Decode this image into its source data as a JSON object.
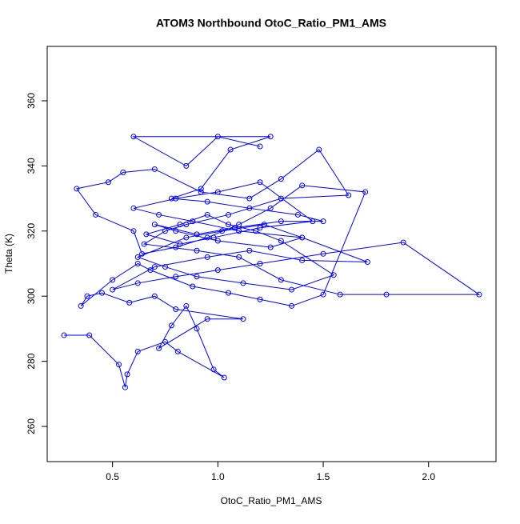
{
  "chart_data": {
    "type": "scatter",
    "connect": true,
    "title": "ATOM3 Northbound OtoC_Ratio_PM1_AMS",
    "xlabel": "OtoC_Ratio_PM1_AMS",
    "ylabel": "Theta (K)",
    "color": "#0000ff",
    "xlim": [
      0.19,
      2.32
    ],
    "ylim": [
      249.2,
      376.7
    ],
    "xticks": [
      0.5,
      {
        "value": 1,
        "label": "1.0"
      },
      1.5,
      {
        "value": 2,
        "label": "2.0"
      }
    ],
    "yticks": [
      260,
      280,
      300,
      320,
      340,
      360
    ],
    "x": [
      0.27,
      0.39,
      0.53,
      0.56,
      0.57,
      0.62,
      0.75,
      0.81,
      1.03,
      0.98,
      0.9,
      0.85,
      0.78,
      0.72,
      0.95,
      1.12,
      0.8,
      0.7,
      0.58,
      0.45,
      0.38,
      0.35,
      0.5,
      0.62,
      0.68,
      0.88,
      1.05,
      1.2,
      1.35,
      1.5,
      1.7,
      1.4,
      1.25,
      1.1,
      0.95,
      0.8,
      0.64,
      0.6,
      0.42,
      0.33,
      0.48,
      0.55,
      0.7,
      0.92,
      1.15,
      1.3,
      1.48,
      1.62,
      1.3,
      1.05,
      0.85,
      0.75,
      0.65,
      0.9,
      1.1,
      1.3,
      1.58,
      1.8,
      2.24,
      1.88,
      1.5,
      1.2,
      1.0,
      0.8,
      0.62,
      0.5,
      0.7,
      0.95,
      1.15,
      1.4,
      1.71,
      1.4,
      1.1,
      0.88,
      0.72,
      0.6,
      0.8,
      1.0,
      1.2,
      1.45,
      1.2,
      0.98,
      0.82,
      0.66,
      0.82,
      0.95,
      1.05,
      1.18,
      1.3,
      1.55,
      1.35,
      1.12,
      0.9,
      0.75,
      0.62,
      0.85,
      1.02,
      1.22,
      1.4,
      1.25,
      1.0,
      0.8,
      0.7,
      0.9,
      1.08,
      1.3,
      1.5,
      1.38,
      1.15,
      0.95,
      0.78,
      0.92,
      1.06,
      1.25,
      0.6,
      0.85,
      1.0,
      1.2
    ],
    "values": [
      288,
      288,
      279,
      272,
      276,
      283,
      286,
      283,
      275,
      277.5,
      290,
      297,
      291,
      284,
      293,
      293,
      296,
      300,
      298,
      301,
      300,
      297,
      305,
      310,
      308,
      303,
      301,
      299,
      297,
      300.5,
      332,
      334,
      327,
      322,
      318,
      315,
      313,
      320,
      325,
      333,
      335,
      338,
      339,
      332,
      330,
      336,
      345,
      331,
      330,
      325,
      322,
      320,
      316,
      314,
      312,
      305,
      300.5,
      300.5,
      300.5,
      316.5,
      313,
      310,
      308,
      306,
      304,
      302,
      309,
      312,
      314,
      311,
      310.5,
      318,
      320,
      323,
      325,
      327,
      330,
      332,
      335,
      323,
      321,
      318,
      316,
      319,
      322,
      325,
      322,
      320,
      317,
      306.5,
      302,
      304,
      306,
      309,
      312,
      318,
      320,
      322,
      318,
      315,
      317,
      320,
      322,
      319,
      321,
      323,
      323,
      325,
      327,
      329,
      330,
      333,
      345,
      349,
      349,
      340,
      349,
      346
    ]
  }
}
